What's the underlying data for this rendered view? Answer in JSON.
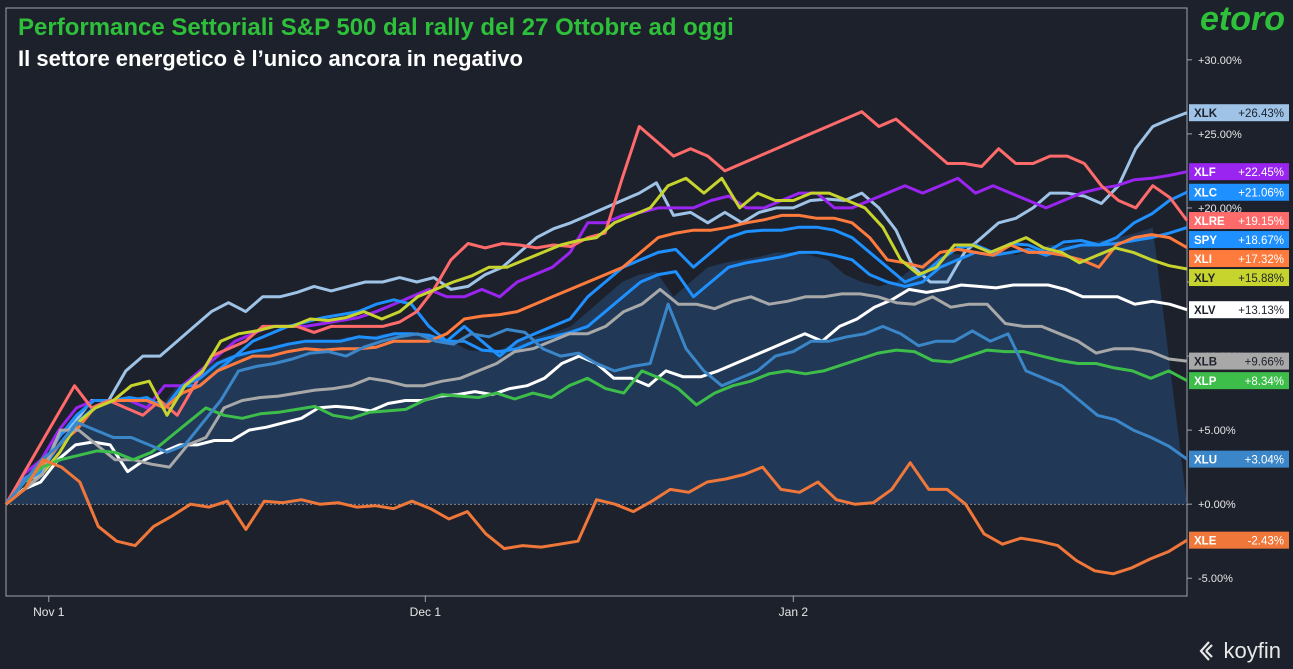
{
  "chart_data": {
    "type": "line",
    "title": "Performance Settoriali S&P 500 dal rally del 27 Ottobre ad oggi",
    "subtitle": "Il settore energetico è l’unico ancora in negativo",
    "x_ticks": [
      "Nov 1",
      "Dec 1",
      "Jan 2"
    ],
    "y_ticks": [
      "+30.00%",
      "+25.00%",
      "+20.00%",
      "+15.00%",
      "+10.00%",
      "+5.00%",
      "+0.00%",
      "-5.00%"
    ],
    "ylim": [
      -6.2,
      33.5
    ],
    "grid": false,
    "legend": "right-edge value tags",
    "series": [
      {
        "name": "XLK",
        "color": "#9ec3e6",
        "label_text": "+26.43%",
        "final": 26.43,
        "values": [
          0,
          1.5,
          2,
          4.5,
          5.5,
          7,
          7,
          9,
          10,
          10,
          11,
          12,
          13,
          13.6,
          13,
          14,
          14,
          14.3,
          14.7,
          14.4,
          14.7,
          15,
          15,
          15.3,
          15,
          15.3,
          14.5,
          14.7,
          15.5,
          16,
          17,
          18,
          18.6,
          19,
          19.5,
          20,
          20.5,
          21,
          21.7,
          19.5,
          19.7,
          19,
          19.7,
          19,
          19.7,
          20,
          20,
          20.5,
          20.6,
          20.5,
          21,
          20,
          18.5,
          16,
          15,
          15,
          17,
          18,
          19,
          19.3,
          20,
          21,
          21,
          20.8,
          20.3,
          21.5,
          24,
          25.5,
          26,
          26.43
        ]
      },
      {
        "name": "XLF",
        "color": "#9a24f0",
        "label_text": "+22.45%",
        "final": 22.45,
        "values": [
          0,
          2,
          3,
          5,
          6.5,
          7,
          7,
          7,
          6.5,
          8,
          8,
          9,
          10,
          11,
          11.5,
          12,
          12,
          12,
          12.2,
          12.4,
          12.6,
          13,
          13.5,
          14,
          14.5,
          14,
          14,
          14.5,
          14,
          15,
          15.5,
          16,
          17,
          19,
          19,
          19.5,
          19.7,
          20,
          20,
          20,
          20.5,
          20.8,
          20,
          20,
          20.5,
          21,
          21,
          20,
          20,
          20.5,
          21,
          21.5,
          21,
          21.5,
          22,
          21,
          21.5,
          21,
          20.5,
          20,
          20.5,
          21,
          21.3,
          21.5,
          21.9,
          22,
          22.2,
          22.45
        ]
      },
      {
        "name": "XLC",
        "color": "#1e90ff",
        "label_text": "+21.06%",
        "final": 21.06,
        "values": [
          0,
          1.7,
          2.5,
          4.5,
          6,
          7,
          7,
          7.2,
          7,
          6.5,
          8,
          8,
          9,
          10,
          11,
          11.5,
          12,
          12.3,
          12.6,
          12.8,
          13,
          13.5,
          13.8,
          13.5,
          12,
          11,
          12,
          11,
          10,
          11,
          11.5,
          12,
          12.5,
          14,
          15,
          16,
          16.5,
          17,
          17.2,
          16,
          17,
          18,
          18.4,
          18.5,
          18.5,
          18.7,
          18.7,
          18.5,
          18,
          17,
          16,
          15,
          15.5,
          16.5,
          17.3,
          17.5,
          17,
          17.6,
          17.5,
          17,
          17.7,
          17.8,
          17.5,
          18,
          19,
          19.6,
          20.5,
          21.06
        ]
      },
      {
        "name": "XLRE",
        "color": "#ff6b6b",
        "label_text": "+19.15%",
        "final": 19.15,
        "values": [
          0,
          2,
          4,
          6,
          8,
          6.5,
          7,
          6.5,
          6,
          7,
          6,
          8,
          10,
          10.5,
          11,
          12,
          12,
          12,
          11.6,
          12,
          12,
          12,
          12,
          12.3,
          13,
          14.5,
          16.5,
          17.6,
          17.3,
          17.6,
          17.5,
          17.3,
          17.5,
          17.4,
          18,
          18.3,
          22,
          25.5,
          24.5,
          23.5,
          24,
          23.5,
          22.5,
          23,
          23.5,
          24,
          24.5,
          25,
          25.5,
          26,
          26.5,
          25.5,
          26,
          25,
          24,
          23,
          23,
          22.8,
          24,
          23,
          23,
          23.5,
          23.5,
          23,
          21.5,
          20.5,
          20,
          21.5,
          20.7,
          19.15
        ]
      },
      {
        "name": "SPY",
        "color": "#1e90ff",
        "label_text": "+18.67%",
        "final": 18.67,
        "values": [
          0,
          1.5,
          2.2,
          4,
          5.5,
          6.5,
          7,
          7,
          7.2,
          6.5,
          8,
          8.5,
          9.5,
          10,
          10.3,
          10.5,
          10.8,
          11,
          11,
          11,
          11.3,
          11.2,
          11.5,
          11.5,
          11.4,
          11,
          11,
          10.4,
          10.3,
          10.5,
          11,
          11.3,
          11.6,
          12,
          13,
          14,
          15,
          15.5,
          15.7,
          14,
          15,
          16,
          16.3,
          16.5,
          16.7,
          17,
          17,
          16.8,
          16.5,
          15.5,
          15,
          14.7,
          15,
          16,
          16.5,
          17,
          16.8,
          17,
          17.2,
          16.8,
          17.2,
          17.5,
          17.5,
          17.6,
          17.8,
          18,
          18.3,
          18.67
        ]
      },
      {
        "name": "XLI",
        "color": "#ff7a3d",
        "label_text": "+17.32%",
        "final": 17.32,
        "values": [
          0,
          1.5,
          2.5,
          4,
          5,
          6.5,
          7,
          7,
          7,
          6.5,
          7.5,
          8,
          9,
          9.5,
          10,
          10,
          10.3,
          10.5,
          10.4,
          10.5,
          10.5,
          10.6,
          11,
          11,
          11,
          11.5,
          12.5,
          12.7,
          12.8,
          13,
          13.5,
          14,
          14.5,
          15,
          15.5,
          16,
          17,
          18,
          18.3,
          18.5,
          18.5,
          18.7,
          19,
          19.2,
          19.5,
          19.5,
          19.3,
          19.3,
          19,
          18,
          16.5,
          16.3,
          16,
          17,
          17.2,
          17,
          16.8,
          17.5,
          17,
          17,
          16.8,
          16.5,
          16,
          17.5,
          18,
          18.2,
          18,
          17.32
        ]
      },
      {
        "name": "XLY",
        "color": "#c8d42e",
        "label_text": "+15.88%",
        "final": 15.88,
        "values": [
          0,
          1,
          2,
          3.5,
          5.5,
          6.5,
          7,
          8,
          8.3,
          6,
          8,
          9,
          11,
          11.5,
          11.7,
          12,
          12,
          12.5,
          12.4,
          12.6,
          13,
          12.5,
          13,
          14,
          14.5,
          15,
          15.4,
          16,
          16,
          16.5,
          17,
          17.5,
          17.8,
          18,
          19,
          19.5,
          20,
          21.5,
          22,
          21,
          22,
          20,
          21,
          20.5,
          20.5,
          21,
          21,
          20.5,
          20,
          18.7,
          16.5,
          15.5,
          16,
          17.5,
          17.5,
          17,
          17.5,
          18,
          17.3,
          17,
          16.3,
          16.8,
          17.3,
          17,
          16.5,
          16.1,
          15.88
        ]
      },
      {
        "name": "XLV",
        "color": "#ffffff",
        "label_text": "+13.13%",
        "final": 13.13,
        "values": [
          0,
          1,
          1.5,
          3,
          4,
          4.2,
          4,
          2.2,
          3,
          3.5,
          4,
          4,
          4.3,
          4.3,
          5,
          5.2,
          5.5,
          5.8,
          6.5,
          6.6,
          6.5,
          6.3,
          6.8,
          7,
          7,
          7.3,
          7.4,
          7.6,
          7.4,
          7.8,
          8,
          8.5,
          9.5,
          10,
          9.5,
          8.5,
          8.5,
          8,
          9,
          8.6,
          8.6,
          9,
          9.5,
          10,
          10.5,
          11,
          11.5,
          11,
          12,
          12.5,
          13.3,
          13.8,
          14.5,
          14.3,
          14.5,
          14.8,
          14.7,
          14.6,
          14.8,
          14.8,
          14.8,
          14.5,
          14,
          14,
          14,
          13.5,
          13.7,
          13.5,
          13.13
        ]
      },
      {
        "name": "XLB",
        "color": "#a8a8a8",
        "label_text": "+9.66%",
        "final": 9.66,
        "values": [
          0,
          1,
          2,
          5,
          5,
          4,
          3,
          3,
          2.7,
          2.5,
          4,
          4.5,
          6.5,
          7,
          7.2,
          7.3,
          7.5,
          7.7,
          7.8,
          8,
          8.5,
          8.3,
          8,
          8,
          8.3,
          8.5,
          9,
          9.5,
          10.3,
          10.5,
          11,
          11.5,
          11.5,
          12,
          13,
          13.5,
          14.5,
          13.5,
          13.5,
          13.2,
          13.7,
          14,
          13.5,
          13.7,
          14,
          14,
          14.2,
          14.2,
          14,
          13.6,
          13.5,
          14,
          13.3,
          13.5,
          13.5,
          12.2,
          12,
          12,
          11.5,
          11,
          10.2,
          10.5,
          10.5,
          10.3,
          9.8,
          9.66
        ]
      },
      {
        "name": "XLP",
        "color": "#3dbd4a",
        "label_text": "+8.34%",
        "final": 8.34,
        "values": [
          0,
          1.5,
          2.5,
          3,
          3.3,
          3.6,
          3.5,
          3,
          3.5,
          4.5,
          5.5,
          6.5,
          6,
          5.8,
          6.1,
          6.2,
          6.4,
          6.6,
          6,
          5.8,
          6.2,
          6.3,
          6.4,
          7,
          7.4,
          7.3,
          7.2,
          7.5,
          7.1,
          7.5,
          7.2,
          8,
          8.5,
          7.8,
          7.5,
          9,
          8.5,
          7.8,
          6.7,
          7.5,
          8,
          8.3,
          8.8,
          9,
          8.8,
          9,
          9.4,
          9.8,
          10.2,
          10.4,
          10.3,
          9.7,
          9.6,
          10,
          10.4,
          10.3,
          10.3,
          10,
          9.7,
          9.5,
          9.5,
          9.2,
          9,
          8.5,
          9,
          8.34
        ]
      },
      {
        "name": "XLU",
        "color": "#3a86c8",
        "label_text": "+3.04%",
        "final": 3.04,
        "values": [
          0,
          1.5,
          3,
          4,
          5.5,
          5,
          4.5,
          4.5,
          4,
          3.5,
          4,
          5.5,
          7,
          9,
          9.3,
          9.5,
          9.8,
          10.2,
          10.3,
          10,
          10.6,
          11,
          11.3,
          11.5,
          11,
          10.8,
          11.5,
          11.3,
          11.8,
          11.6,
          10.5,
          10,
          10.2,
          9.5,
          9,
          9.3,
          9.5,
          13.5,
          10.5,
          9,
          8,
          8.5,
          9,
          10,
          10.3,
          11,
          11,
          11.3,
          11.5,
          12,
          11.5,
          10.7,
          11,
          11,
          11.7,
          11,
          11.5,
          9,
          8.5,
          8,
          7,
          6,
          5.7,
          5,
          4.5,
          3.9,
          3.04
        ]
      },
      {
        "name": "XLE",
        "color": "#f0773a",
        "label_text": "-2.43%",
        "final": -2.43,
        "values": [
          0,
          1,
          3,
          2.5,
          1.5,
          -1.5,
          -2.5,
          -2.8,
          -1.5,
          -0.8,
          0,
          -0.2,
          0.2,
          -1.7,
          0.2,
          0.1,
          0.3,
          0,
          0.1,
          -0.2,
          -0.1,
          -0.3,
          0.2,
          -0.3,
          -1,
          -0.5,
          -2,
          -3,
          -2.8,
          -2.9,
          -2.7,
          -2.5,
          0.3,
          0,
          -0.5,
          0.2,
          1,
          0.8,
          1.5,
          1.7,
          2,
          2.5,
          1,
          0.8,
          1.5,
          0.3,
          0,
          0.1,
          1,
          2.8,
          1,
          1,
          0,
          -2,
          -2.7,
          -2.3,
          -2.5,
          -2.8,
          -3.8,
          -4.5,
          -4.7,
          -4.3,
          -3.7,
          -3.2,
          -2.43
        ]
      }
    ]
  },
  "logos": {
    "top_right": "etoro",
    "bottom_right": "koyfin"
  }
}
